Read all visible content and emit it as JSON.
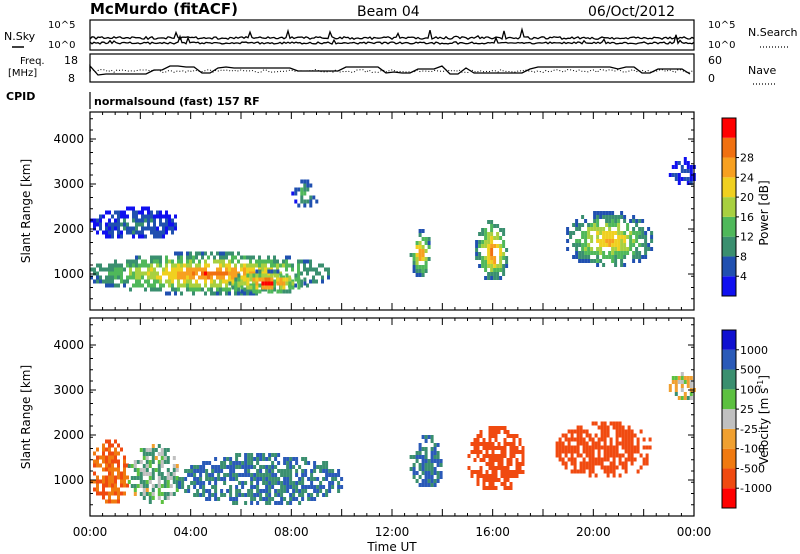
{
  "header": {
    "station": "McMurdo (fitACF)",
    "beam": "Beam 04",
    "date": "06/Oct/2012"
  },
  "top_panels": {
    "nsky_label": "N.Sky",
    "nsearch_label": "N.Search",
    "noise_tick_hi": "10^5",
    "noise_tick_lo": "10^0",
    "freq_label": "Freq.",
    "freq_unit": "[MHz]",
    "freq_ticks": [
      "18",
      "8"
    ],
    "nave_label": "Nave",
    "nave_ticks": [
      "60",
      "0"
    ],
    "cpid_label": "CPID",
    "cpid_text": "normalsound (fast) 157 RF"
  },
  "colors": {
    "frame": "#000000",
    "power": [
      "#1010f0",
      "#2050b0",
      "#3a8f6f",
      "#4fb85a",
      "#a8d040",
      "#f0d020",
      "#f7a020",
      "#f07010",
      "#ff0000"
    ],
    "velocity": [
      "#1010d0",
      "#2a5ab8",
      "#3a8f6f",
      "#5cc040",
      "#c0c0c0",
      "#f0a030",
      "#f07a10",
      "#f04a10",
      "#ff0000"
    ]
  },
  "chart_data": [
    {
      "type": "heatmap",
      "title": "",
      "xlabel": "",
      "ylabel": "Slant Range [km]",
      "x_ticks": [
        "00:00",
        "04:00",
        "08:00",
        "12:00",
        "16:00",
        "20:00",
        "00:00"
      ],
      "y_ticks": [
        1000,
        2000,
        3000,
        4000
      ],
      "ylim": [
        200,
        4600
      ],
      "xlim_hours": [
        0,
        24
      ],
      "colorbar": {
        "label": "Power [dB]",
        "ticks": [
          4,
          8,
          12,
          16,
          20,
          24,
          28
        ],
        "range": [
          0,
          30
        ]
      },
      "echo_regions": [
        {
          "t_start": 0.0,
          "t_end": 9.5,
          "r_start": 600,
          "r_end": 1500,
          "peak": 26
        },
        {
          "t_start": 5.5,
          "t_end": 8.5,
          "r_start": 600,
          "r_end": 1100,
          "peak": 30
        },
        {
          "t_start": 0.0,
          "t_end": 3.5,
          "r_start": 1800,
          "r_end": 2500,
          "peak": 8
        },
        {
          "t_start": 8.0,
          "t_end": 9.0,
          "r_start": 2500,
          "r_end": 3100,
          "peak": 14
        },
        {
          "t_start": 12.7,
          "t_end": 13.5,
          "r_start": 1000,
          "r_end": 2000,
          "peak": 24
        },
        {
          "t_start": 15.3,
          "t_end": 16.6,
          "r_start": 900,
          "r_end": 2200,
          "peak": 26
        },
        {
          "t_start": 18.8,
          "t_end": 22.3,
          "r_start": 1200,
          "r_end": 2400,
          "peak": 22
        },
        {
          "t_start": 23.0,
          "t_end": 24.0,
          "r_start": 3000,
          "r_end": 3600,
          "peak": 6
        }
      ]
    },
    {
      "type": "heatmap",
      "title": "",
      "xlabel": "Time UT",
      "ylabel": "Slant Range [km]",
      "x_ticks": [
        "00:00",
        "04:00",
        "08:00",
        "12:00",
        "16:00",
        "20:00",
        "00:00"
      ],
      "y_ticks": [
        1000,
        2000,
        3000,
        4000
      ],
      "ylim": [
        200,
        4600
      ],
      "xlim_hours": [
        0,
        24
      ],
      "colorbar": {
        "label": "Velocity [m s^-1]",
        "ticks": [
          1000,
          500,
          100,
          25,
          -25,
          -100,
          -500,
          -1000
        ]
      },
      "echo_regions": [
        {
          "t_start": 0.0,
          "t_end": 1.5,
          "r_start": 500,
          "r_end": 1900,
          "velocity": -300
        },
        {
          "t_start": 1.5,
          "t_end": 3.5,
          "r_start": 500,
          "r_end": 1800,
          "velocity": 50
        },
        {
          "t_start": 3.5,
          "t_end": 10.0,
          "r_start": 500,
          "r_end": 1600,
          "velocity": 300
        },
        {
          "t_start": 12.7,
          "t_end": 14.0,
          "r_start": 900,
          "r_end": 2000,
          "velocity": 300
        },
        {
          "t_start": 15.0,
          "t_end": 17.2,
          "r_start": 800,
          "r_end": 2200,
          "velocity": -400
        },
        {
          "t_start": 18.5,
          "t_end": 22.3,
          "r_start": 1100,
          "r_end": 2300,
          "velocity": -600
        },
        {
          "t_start": 23.0,
          "t_end": 24.0,
          "r_start": 2800,
          "r_end": 3400,
          "velocity": 0
        }
      ]
    }
  ]
}
